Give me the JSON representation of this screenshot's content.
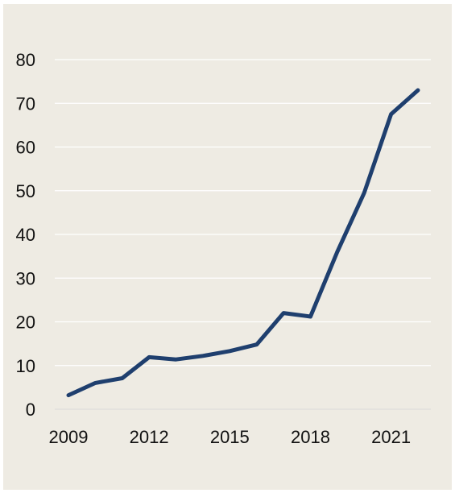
{
  "chart_data": {
    "type": "line",
    "title": "",
    "xlabel": "",
    "ylabel": "",
    "x": [
      2009,
      2010,
      2011,
      2012,
      2013,
      2014,
      2015,
      2016,
      2017,
      2018,
      2019,
      2020,
      2021,
      2022
    ],
    "series": [
      {
        "values": [
          3.2,
          6.0,
          7.1,
          11.9,
          11.4,
          12.2,
          13.3,
          14.8,
          22.0,
          21.2,
          36.0,
          49.5,
          67.5,
          73.0
        ]
      }
    ],
    "xticks": [
      "2009",
      "2012",
      "2015",
      "2018",
      "2021"
    ],
    "yticks": [
      "0",
      "10",
      "20",
      "30",
      "40",
      "50",
      "60",
      "70",
      "80"
    ],
    "ylim": [
      0,
      80
    ],
    "xlim": [
      2009,
      2022
    ],
    "grid": "horizontal",
    "legend": "none",
    "colors": {
      "series": "#1f3f6e",
      "background": "#eeebe3",
      "grid": "#ffffff"
    }
  }
}
